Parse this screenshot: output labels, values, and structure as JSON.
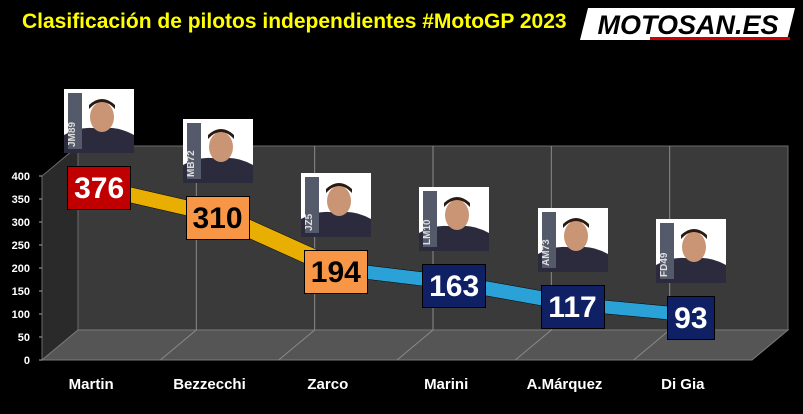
{
  "header": {
    "title": "Clasificación de pilotos independientes #MotoGP 2023",
    "logo_text": "MOTOSAN.ES"
  },
  "colors": {
    "background": "#000000",
    "title": "#ffff00",
    "ribbon_yellow": "#f2b600",
    "ribbon_blue": "#2aa8e0",
    "label_red": "#c00000",
    "label_orange": "#f79646",
    "label_navy": "#0f2164"
  },
  "chart_data": {
    "type": "line",
    "title": "Clasificación de pilotos independientes #MotoGP 2023",
    "categories": [
      "Martin",
      "Bezzecchi",
      "Zarco",
      "Marini",
      "A.Márquez",
      "Di Gia"
    ],
    "values": [
      376,
      310,
      194,
      163,
      117,
      93
    ],
    "label_colors": [
      "#c00000",
      "#f79646",
      "#f79646",
      "#0f2164",
      "#0f2164",
      "#0f2164"
    ],
    "label_text_colors": [
      "#ffffff",
      "#000000",
      "#000000",
      "#ffffff",
      "#ffffff",
      "#ffffff"
    ],
    "ylim": [
      0,
      400
    ],
    "yticks": [
      0,
      50,
      100,
      150,
      200,
      250,
      300,
      350,
      400
    ],
    "xlabel": "",
    "ylabel": "",
    "grid": true,
    "rider_photos": [
      {
        "rider": "Martin",
        "number": "JM89",
        "icon": "rider-photo-icon"
      },
      {
        "rider": "Bezzecchi",
        "number": "MB72",
        "icon": "rider-photo-icon"
      },
      {
        "rider": "Zarco",
        "number": "JZ5",
        "icon": "rider-photo-icon"
      },
      {
        "rider": "Marini",
        "number": "LM10",
        "icon": "rider-photo-icon"
      },
      {
        "rider": "A.Márquez",
        "number": "AM73",
        "icon": "rider-photo-icon"
      },
      {
        "rider": "Di Gia",
        "number": "FD49",
        "icon": "rider-photo-icon"
      }
    ]
  }
}
